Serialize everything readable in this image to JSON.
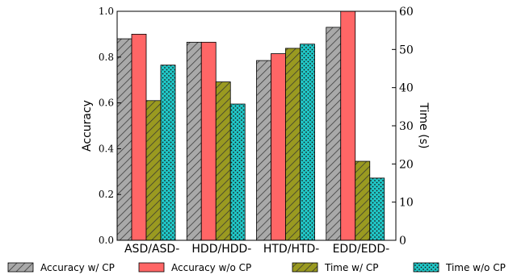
{
  "chart_data": {
    "type": "bar",
    "categories": [
      "ASD/ASD-",
      "HDD/HDD-",
      "HTD/HTD-",
      "EDD/EDD-"
    ],
    "series": [
      {
        "name": "Accuracy w/ CP",
        "axis": "left",
        "values": [
          0.88,
          0.865,
          0.785,
          0.93
        ],
        "color": "#a9a9a9",
        "pattern": "diagonal-hatch"
      },
      {
        "name": "Accuracy w/o CP",
        "axis": "left",
        "values": [
          0.9,
          0.865,
          0.815,
          1.0
        ],
        "color": "#ff6666",
        "pattern": "solid"
      },
      {
        "name": "Time w/ CP",
        "axis": "right",
        "values": [
          36.6,
          41.5,
          50.3,
          20.7
        ],
        "color": "#9a9a20",
        "pattern": "diagonal-hatch"
      },
      {
        "name": "Time w/o CP",
        "axis": "right",
        "values": [
          45.9,
          35.7,
          51.4,
          16.3
        ],
        "color": "#20c8c8",
        "pattern": "dots"
      }
    ],
    "ylabel": "Accuracy",
    "ylabel_right": "Time (s)",
    "ylim": [
      0.0,
      1.0
    ],
    "ylim_right": [
      0,
      60
    ],
    "yticks": [
      "0.0",
      "0.2",
      "0.4",
      "0.6",
      "0.8",
      "1.0"
    ],
    "yticks_right": [
      "0",
      "10",
      "20",
      "30",
      "40",
      "50",
      "60"
    ],
    "legend_position": "bottom",
    "grid": false
  }
}
